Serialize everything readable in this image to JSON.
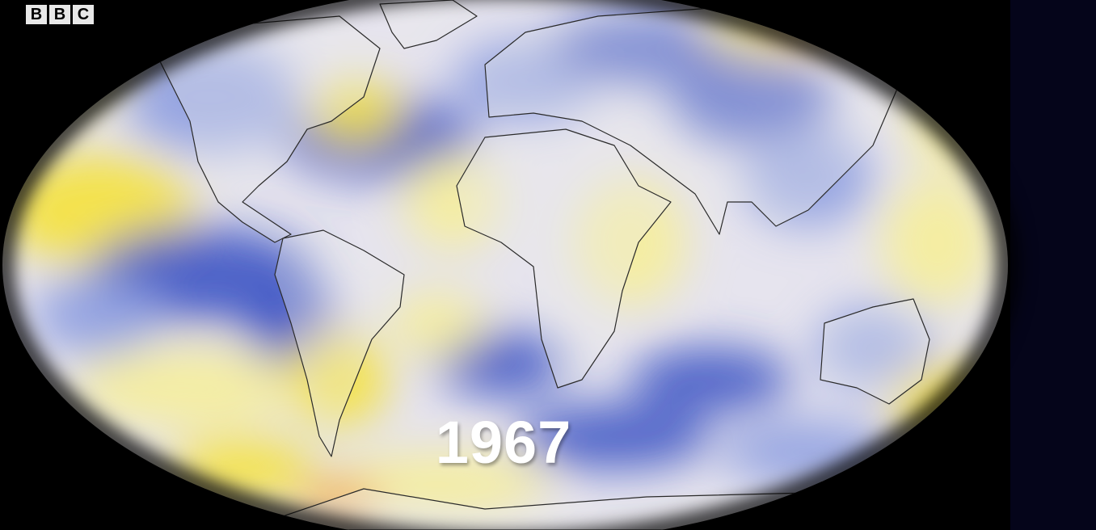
{
  "logo": [
    "B",
    "B",
    "C"
  ],
  "year": "1967"
}
